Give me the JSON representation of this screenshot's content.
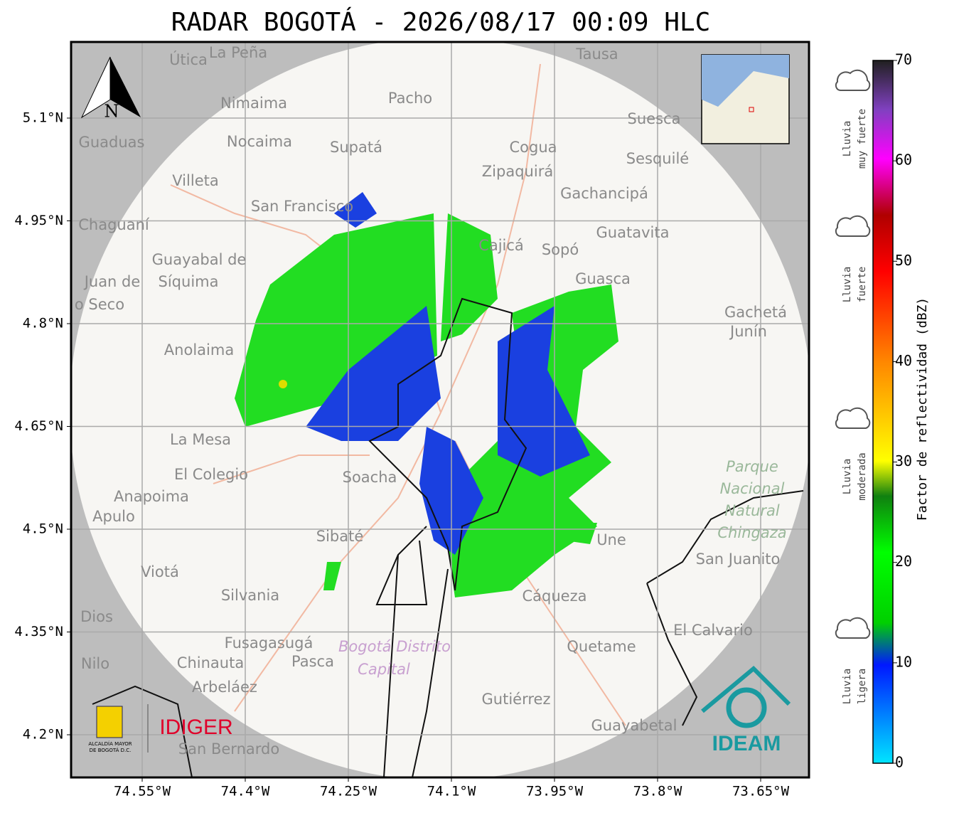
{
  "title": "RADAR BOGOTÁ - 2026/08/17 00:09 HLC",
  "north": "N",
  "lat_ticks": [
    {
      "value": 5.1,
      "label": "5.1°N"
    },
    {
      "value": 4.95,
      "label": "4.95°N"
    },
    {
      "value": 4.8,
      "label": "4.8°N"
    },
    {
      "value": 4.65,
      "label": "4.65°N"
    },
    {
      "value": 4.5,
      "label": "4.5°N"
    },
    {
      "value": 4.35,
      "label": "4.35°N"
    },
    {
      "value": 4.2,
      "label": "4.2°N"
    }
  ],
  "lon_ticks": [
    {
      "value": -74.55,
      "label": "74.55°W"
    },
    {
      "value": -74.4,
      "label": "74.4°W"
    },
    {
      "value": -74.25,
      "label": "74.25°W"
    },
    {
      "value": -74.1,
      "label": "74.1°W"
    },
    {
      "value": -73.95,
      "label": "73.95°W"
    },
    {
      "value": -73.8,
      "label": "73.8°W"
    },
    {
      "value": -73.65,
      "label": "73.65°W"
    }
  ],
  "places": [
    "Útica",
    "La Peña",
    "Tausa",
    "Nimaima",
    "Pacho",
    "Suesca",
    "Guaduas",
    "Nocaima",
    "Supatá",
    "Cogua",
    "Sesquilé",
    "Zipaquirá",
    "Villeta",
    "Gachancipá",
    "San Francisco",
    "Chaguaní",
    "Guatavita",
    "Cajicá",
    "Sopó",
    "Guayabal de",
    "Síquima",
    "Juan de",
    "Guasca",
    "o Seco",
    "Gachetá",
    "Junín",
    "Anolaima",
    "La Mesa",
    "El Colegio",
    "Soacha",
    "Anapoima",
    "Apulo",
    "Sibaté",
    "Une",
    "San Juanito",
    "Viotá",
    "Silvania",
    "Cáqueza",
    "Dios",
    "El Calvario",
    "Fusagasugá",
    "Quetame",
    "Nilo",
    "Chinauta",
    "Pasca",
    "Arbeláez",
    "Gutiérrez",
    "Guayabetal",
    "San Bernardo"
  ],
  "park": [
    "Parque",
    "Nacional",
    "Natural",
    "Chingaza"
  ],
  "district": [
    "Bogotá Distrito",
    "Capital"
  ],
  "colorbar": {
    "label": "Factor de reflectividad (dBZ)",
    "lim": [
      0,
      70
    ],
    "ticks": [
      0,
      10,
      20,
      30,
      40,
      50,
      60,
      70
    ]
  },
  "rain_labels": [
    {
      "lines": [
        "Lluvia",
        "muy fuerte"
      ]
    },
    {
      "lines": [
        "Lluvia",
        "fuerte"
      ]
    },
    {
      "lines": [
        "Lluvia",
        "moderada"
      ]
    },
    {
      "lines": [
        "Lluvia",
        "ligera"
      ]
    }
  ],
  "logos": {
    "idiger": "IDIGER",
    "alcaldia": [
      "ALCALDÍA MAYOR",
      "DE BOGOTÁ D.C."
    ],
    "ideam": "IDEAM"
  }
}
